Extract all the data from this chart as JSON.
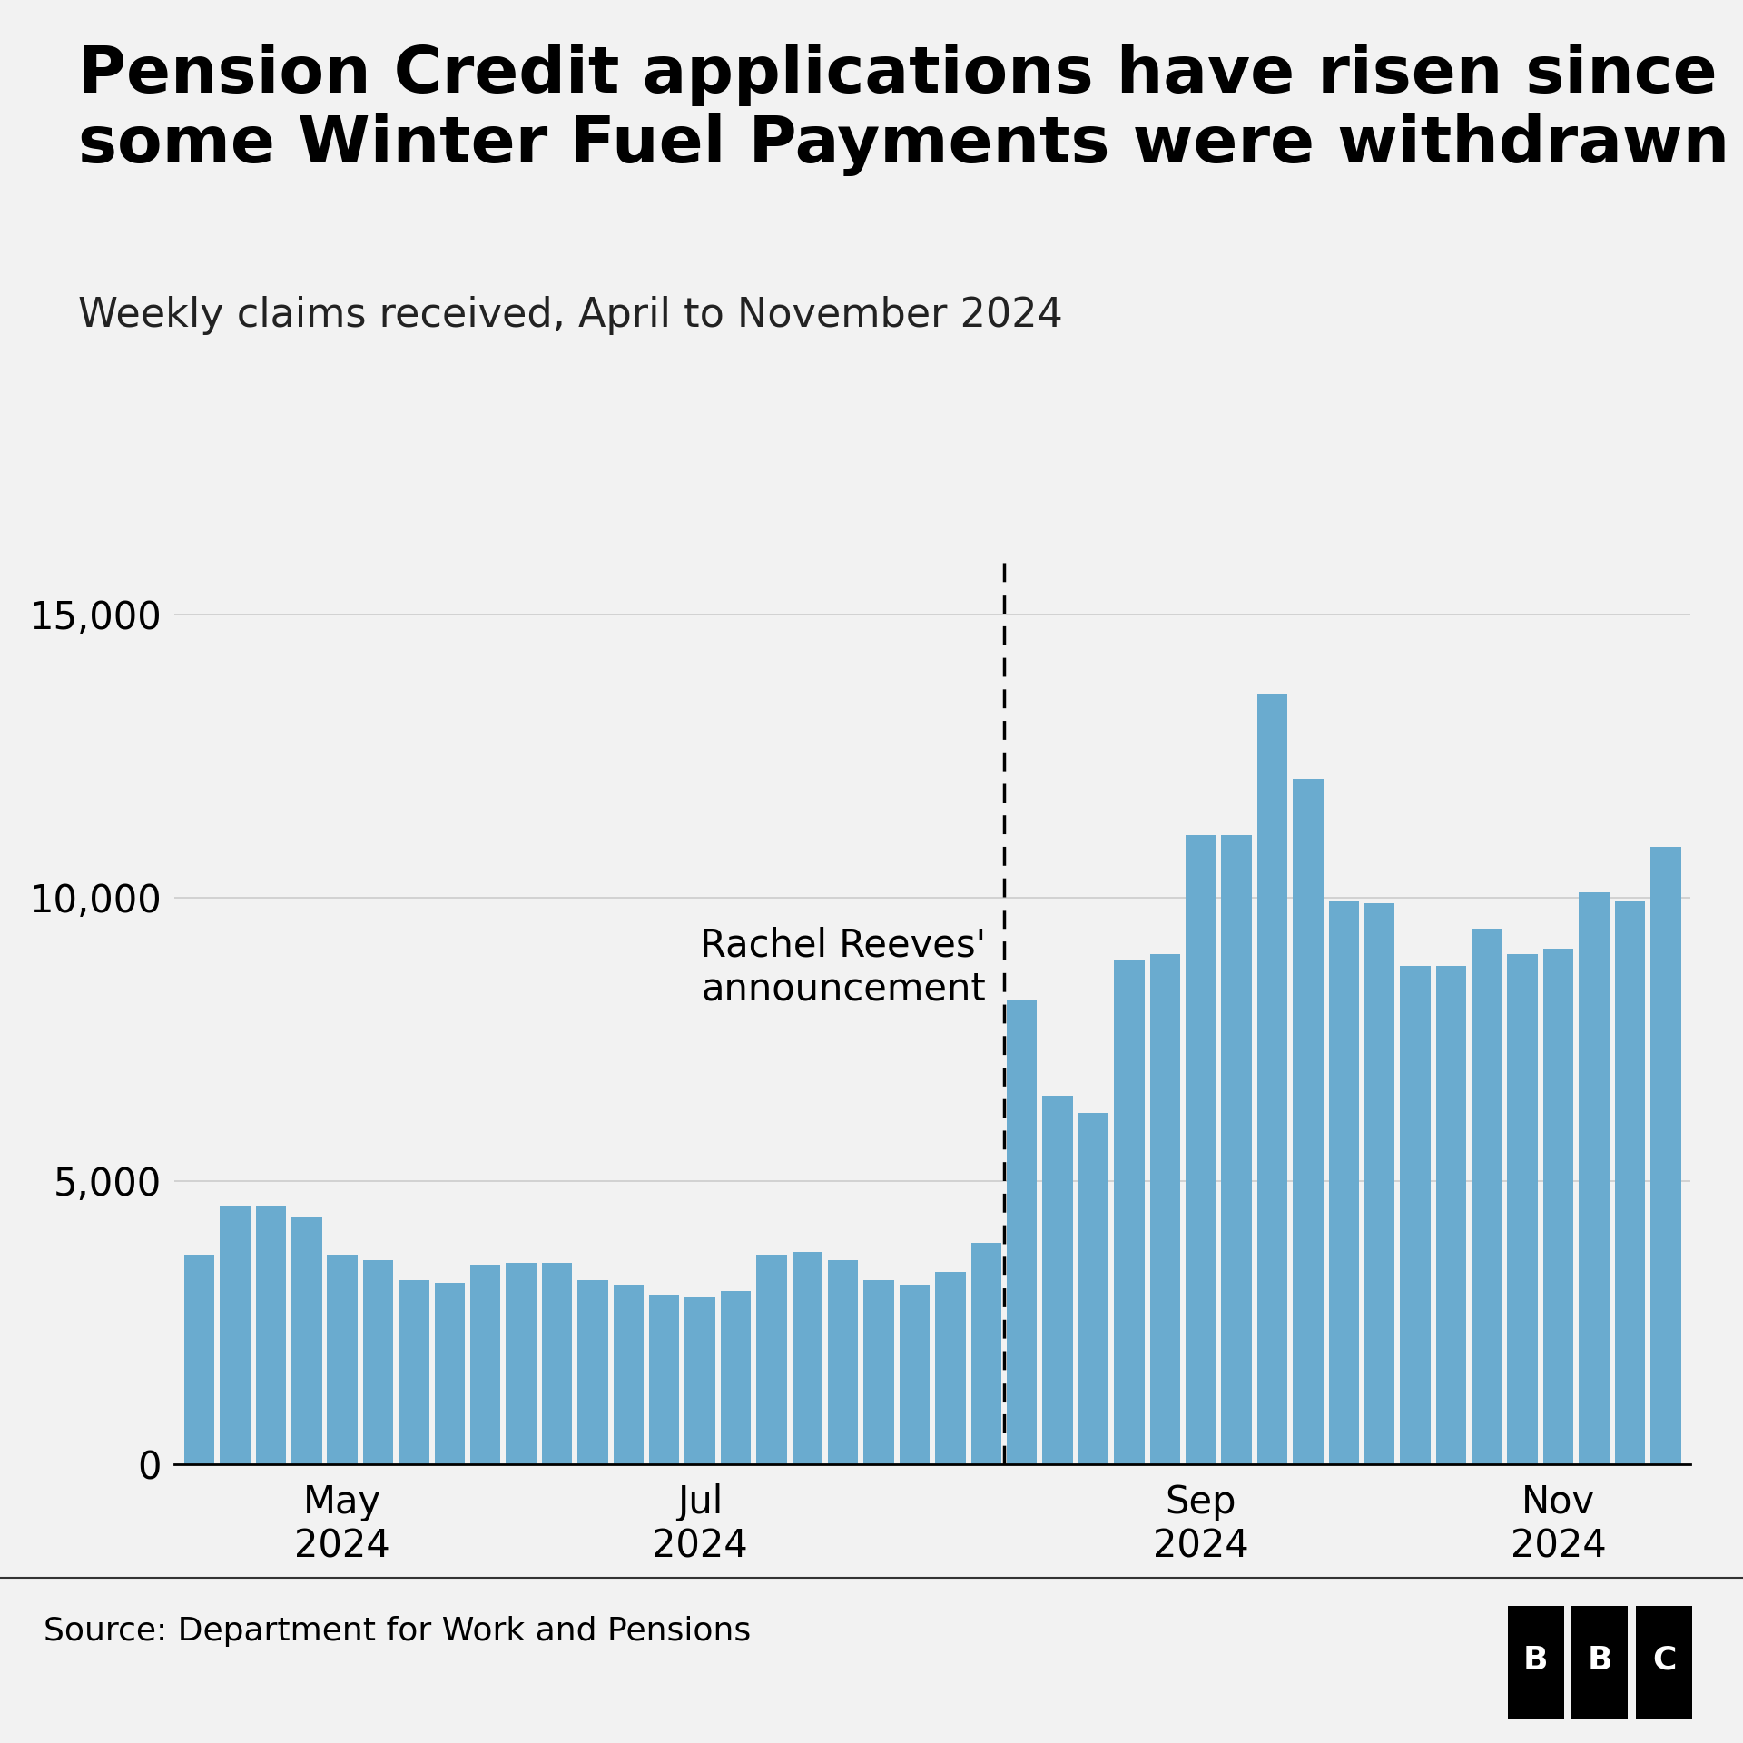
{
  "title": "Pension Credit applications have risen since\nsome Winter Fuel Payments were withdrawn",
  "subtitle": "Weekly claims received, April to November 2024",
  "source": "Source: Department for Work and Pensions",
  "bar_color": "#6aabcf",
  "background_color": "#f2f2f2",
  "annotation_text": "Rachel Reeves'\nannouncement",
  "ylim": [
    0,
    16000
  ],
  "yticks": [
    0,
    5000,
    10000,
    15000
  ],
  "values": [
    3700,
    4550,
    4550,
    4350,
    3700,
    3600,
    3250,
    3200,
    3500,
    3550,
    3550,
    3250,
    3150,
    3000,
    2950,
    3050,
    3700,
    3750,
    3600,
    3250,
    3150,
    3400,
    3900,
    8200,
    6500,
    6200,
    8900,
    9000,
    11100,
    11100,
    13600,
    12100,
    9950,
    9900,
    8800,
    8800,
    9450,
    9000,
    9100,
    10100,
    9950,
    10900
  ],
  "announcement_bar_index": 23,
  "title_fontsize": 52,
  "subtitle_fontsize": 32,
  "tick_label_fontsize": 30,
  "annotation_fontsize": 30,
  "source_fontsize": 26,
  "month_labels": [
    {
      "label": "May\n2024",
      "bar_index": 4
    },
    {
      "label": "Jul\n2024",
      "bar_index": 14
    },
    {
      "label": "Sep\n2024",
      "bar_index": 28
    },
    {
      "label": "Nov\n2024",
      "bar_index": 38
    }
  ]
}
